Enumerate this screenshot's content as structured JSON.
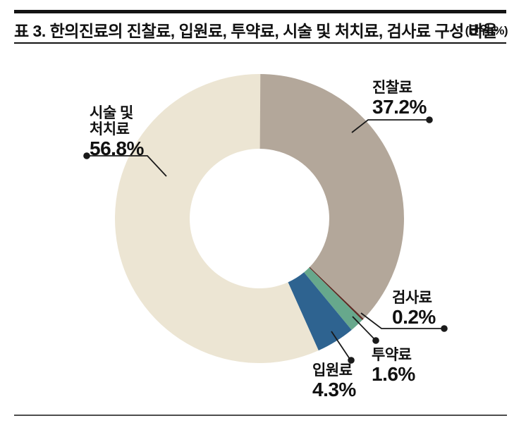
{
  "header": {
    "title": "표 3. 한의진료의 진찰료, 입원료, 투약료, 시술 및 처치료, 검사료 구성 비율",
    "unit_note": "(단위:%)"
  },
  "chart_data": {
    "type": "pie",
    "variant": "donut",
    "title": "표 3. 한의진료의 진찰료, 입원료, 투약료, 시술 및 처치료, 검사료 구성 비율",
    "unit": "%",
    "start_angle_deg": 0,
    "direction": "clockwise",
    "segments": [
      {
        "label": "진찰료",
        "value": 37.2,
        "color": "#b3a79a"
      },
      {
        "label": "검사료",
        "value": 0.2,
        "color": "#5e2a24"
      },
      {
        "label": "투약료",
        "value": 1.6,
        "color": "#67a88c"
      },
      {
        "label": "입원료",
        "value": 4.3,
        "color": "#2e6390"
      },
      {
        "label": "시술 및 처치료",
        "value": 56.8,
        "color": "#ece5d3"
      }
    ],
    "hole_color": "#ffffff",
    "leader_line_color": "#1a1a1a"
  },
  "callouts": {
    "jinchalryo": {
      "name": "진찰료",
      "pct": "37.2%"
    },
    "sisul": {
      "name_line1": "시술 및",
      "name_line2": "처치료",
      "pct": "56.8%"
    },
    "geomsaryo": {
      "name": "검사료",
      "pct": "0.2%"
    },
    "tuyakryo": {
      "name": "투약료",
      "pct": "1.6%"
    },
    "ibwonryo": {
      "name": "입원료",
      "pct": "4.3%"
    }
  }
}
